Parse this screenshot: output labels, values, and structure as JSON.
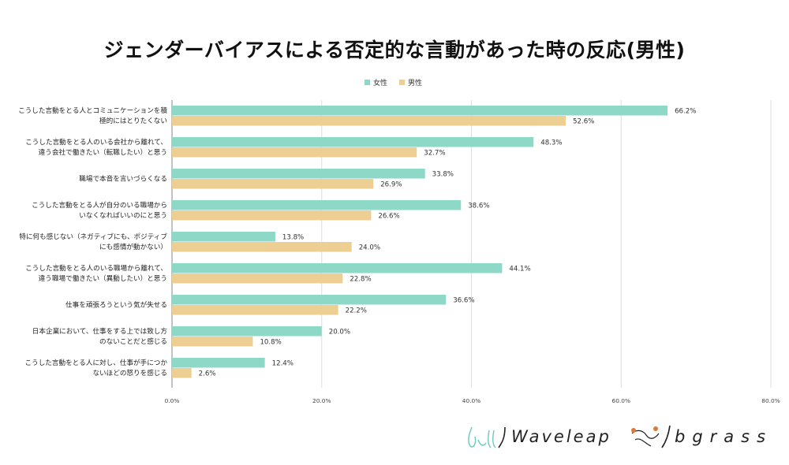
{
  "chart_data": {
    "type": "bar",
    "orientation": "horizontal",
    "title": "ジェンダーバイアスによる否定的な言動があった時の反応(男性)",
    "categories": [
      [
        "こうした言動をとる人とコミュニケーションを積",
        "極的にはとりたくない"
      ],
      [
        "こうした言動をとる人のいる会社から離れて、",
        "違う会社で働きたい（転職したい）と思う"
      ],
      [
        "職場で本音を言いづらくなる"
      ],
      [
        "こうした言動をとる人が自分のいる職場から",
        "いなくなればいいのにと思う"
      ],
      [
        "特に何も感じない（ネガティブにも、ポジティブ",
        "にも感情が動かない）"
      ],
      [
        "こうした言動をとる人のいる職場から離れて、",
        "違う職場で働きたい（異動したい）と思う"
      ],
      [
        "仕事を頑張ろうという気が失せる"
      ],
      [
        "日本企業において、仕事をする上では致し方",
        "のないことだと感じる"
      ],
      [
        "こうした言動をとる人に対し、仕事が手につか",
        "ないほどの怒りを感じる"
      ]
    ],
    "series": [
      {
        "name": "女性",
        "color": "#8ed8c8",
        "values": [
          66.2,
          48.3,
          33.8,
          38.6,
          13.8,
          44.1,
          36.6,
          20.0,
          12.4
        ],
        "labels": [
          "66.2%",
          "48.3%",
          "33.8%",
          "38.6%",
          "13.8%",
          "44.1%",
          "36.6%",
          "20.0%",
          "12.4%"
        ]
      },
      {
        "name": "男性",
        "color": "#edcf93",
        "values": [
          52.6,
          32.7,
          26.9,
          26.6,
          24.0,
          22.8,
          22.2,
          10.8,
          2.6
        ],
        "labels": [
          "52.6%",
          "32.7%",
          "26.9%",
          "26.6%",
          "24.0%",
          "22.8%",
          "22.2%",
          "10.8%",
          "2.6%"
        ]
      }
    ],
    "xlim": [
      0,
      80
    ],
    "xticks": [
      0,
      20,
      40,
      60,
      80
    ],
    "xtick_labels": [
      "0.0%",
      "20.0%",
      "40.0%",
      "60.0%",
      "80.0%"
    ],
    "grid": true,
    "legend_position": "top-center"
  },
  "logos": {
    "waveleap": "Waveleap",
    "bgrass": "bgrass"
  }
}
